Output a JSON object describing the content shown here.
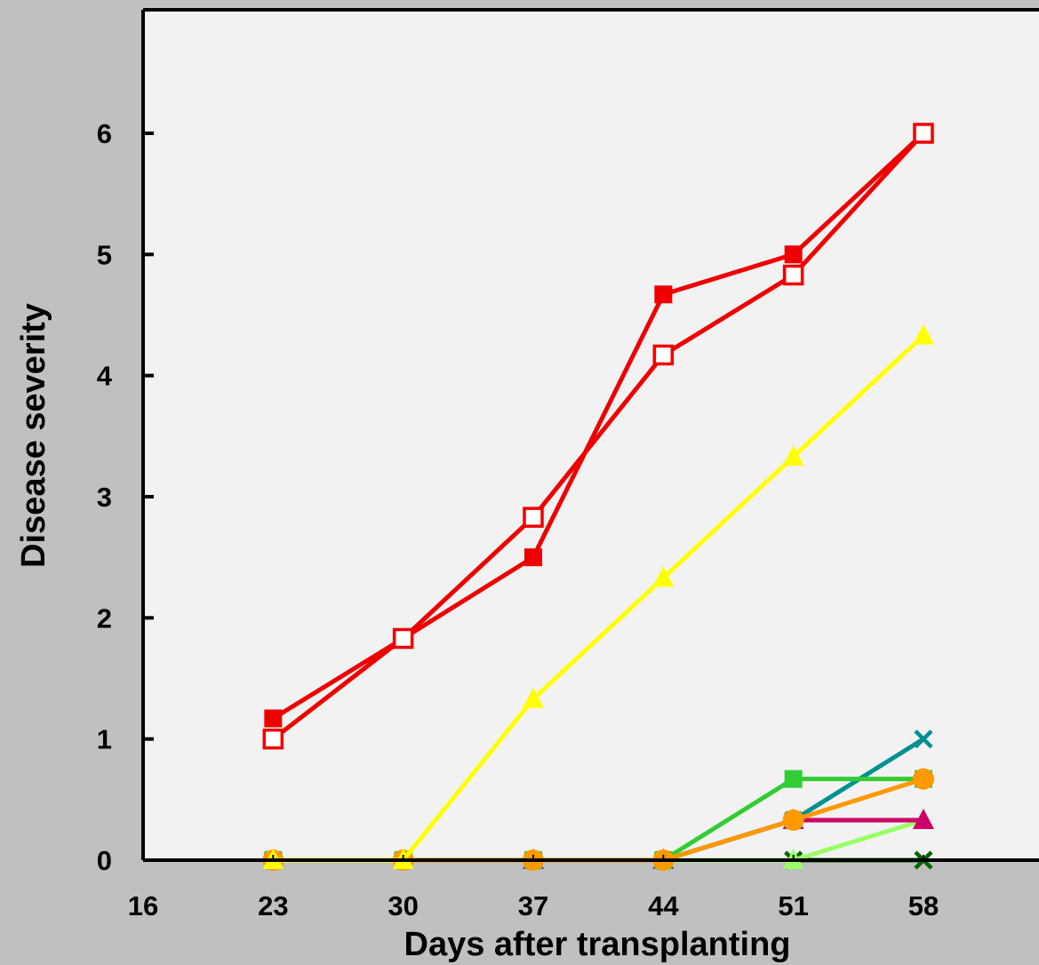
{
  "chart_data": {
    "type": "line",
    "title": "",
    "xlabel": "Days after transplanting",
    "ylabel": "Disease severity",
    "x_ticks": [
      "16",
      "23",
      "30",
      "37",
      "44",
      "51",
      "58"
    ],
    "y_ticks": [
      "0",
      "1",
      "2",
      "3",
      "4",
      "5",
      "6"
    ],
    "xlim": [
      16,
      62
    ],
    "ylim": [
      0,
      7
    ],
    "x": [
      23,
      30,
      37,
      44,
      51,
      58
    ],
    "grid": false,
    "legend": "none",
    "colors": {
      "background": "#c0c0c0",
      "plot_area": "#f2f2f2",
      "axis": "#000000"
    },
    "series": [
      {
        "color": "#ee0000",
        "marker": "square-filled",
        "values": [
          1.17,
          1.83,
          2.5,
          4.67,
          5.0,
          6.0
        ]
      },
      {
        "color": "#ee0000",
        "marker": "square-open",
        "values": [
          1.0,
          1.83,
          2.83,
          4.17,
          4.83,
          6.0
        ]
      },
      {
        "color": "#ffff00",
        "marker": "triangle",
        "values": [
          0,
          0,
          1.33,
          2.33,
          3.33,
          4.33
        ]
      },
      {
        "color": "#009090",
        "marker": "x",
        "values": [
          0,
          0,
          0,
          0,
          0.33,
          1.0
        ]
      },
      {
        "color": "#33cc33",
        "marker": "square-filled",
        "values": [
          0,
          0,
          0,
          0,
          0.67,
          0.67
        ]
      },
      {
        "color": "#cc0066",
        "marker": "triangle",
        "values": [
          0,
          0,
          0,
          0,
          0.33,
          0.33
        ]
      },
      {
        "color": "#006600",
        "marker": "x",
        "values": [
          0,
          0,
          0,
          0,
          0,
          0
        ]
      },
      {
        "color": "#99ff66",
        "marker": "triangle",
        "values": [
          0,
          0,
          0,
          0,
          0,
          0.33
        ]
      },
      {
        "color": "#ff9900",
        "marker": "circle",
        "values": [
          0,
          0,
          0,
          0,
          0.33,
          0.67
        ]
      }
    ]
  }
}
